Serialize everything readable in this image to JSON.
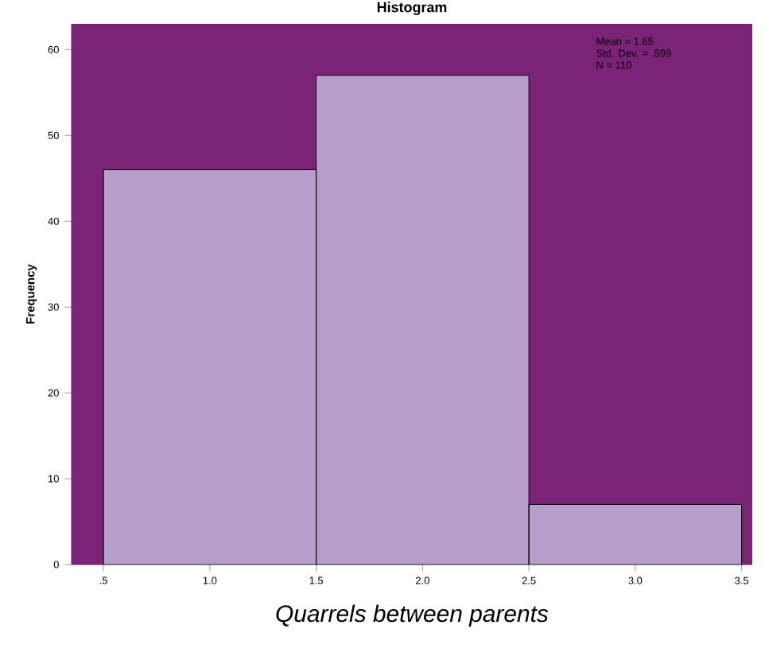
{
  "chart_data": {
    "type": "histogram",
    "title": "Histogram",
    "xlabel": "Quarrels between parents",
    "ylabel": "Frequency",
    "bins": [
      0.5,
      1.5,
      2.5,
      3.5
    ],
    "values": [
      46,
      57,
      7
    ],
    "color": "#b89cca",
    "bands": [
      {
        "axis": "x",
        "from": 0.35,
        "to": 3.55,
        "color": "#7a2377"
      }
    ],
    "xlim": [
      0.35,
      3.55
    ],
    "ylim": [
      0,
      63
    ],
    "xticks": [
      {
        "value": 0.5,
        "label": ".5"
      },
      {
        "value": 1.0,
        "label": "1.0"
      },
      {
        "value": 1.5,
        "label": "1.5"
      },
      {
        "value": 2.0,
        "label": "2.0"
      },
      {
        "value": 2.5,
        "label": "2.5"
      },
      {
        "value": 3.0,
        "label": "3.0"
      },
      {
        "value": 3.5,
        "label": "3.5"
      }
    ],
    "yticks": [
      0,
      10,
      20,
      30,
      40,
      50,
      60
    ],
    "annotations": [
      "Mean = 1.65",
      "Std. Dev. = .599",
      "N = 110"
    ]
  }
}
